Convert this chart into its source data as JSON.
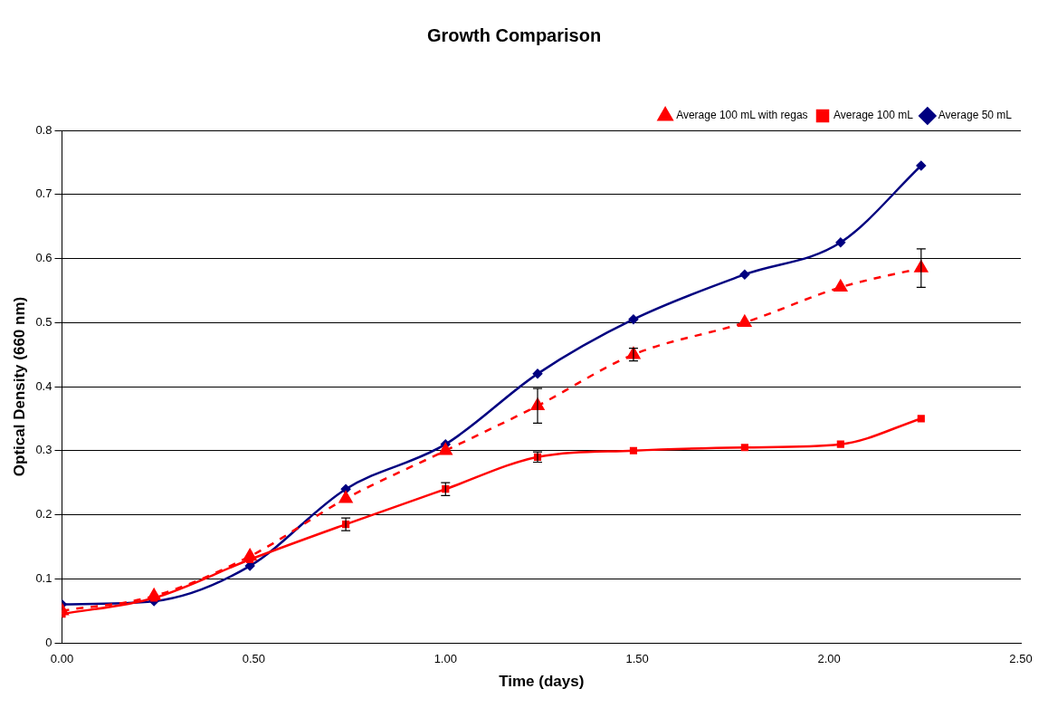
{
  "chart_data": {
    "type": "line",
    "title": "Growth Comparison",
    "xlabel": "Time (days)",
    "ylabel": "Optical Density (660 nm)",
    "xlim": [
      0,
      2.5
    ],
    "xticks": [
      {
        "value": 0,
        "label": "0.00"
      },
      {
        "value": 0.5,
        "label": "0.50"
      },
      {
        "value": 1,
        "label": "1.00"
      },
      {
        "value": 1.5,
        "label": "1.50"
      },
      {
        "value": 2,
        "label": "2.00"
      },
      {
        "value": 2.5,
        "label": "2.50"
      }
    ],
    "ylim": [
      0,
      0.8
    ],
    "yticks": [
      0,
      0.1,
      0.2,
      0.3,
      0.4,
      0.5,
      0.6,
      0.7,
      0.8
    ],
    "grid": "y",
    "legend": "top right",
    "x": [
      0,
      0.24,
      0.49,
      0.74,
      1.0,
      1.24,
      1.49,
      1.78,
      2.03,
      2.24
    ],
    "series": [
      {
        "name": "Average 50 mL",
        "color": "#000080",
        "marker": "diamond",
        "line_style": "solid",
        "values": [
          0.06,
          0.065,
          0.12,
          0.24,
          0.31,
          0.42,
          0.505,
          0.575,
          0.625,
          0.745
        ]
      },
      {
        "name": "Average 100 mL",
        "color": "#ff0000",
        "marker": "square",
        "line_style": "solid",
        "values": [
          0.045,
          0.07,
          0.13,
          0.185,
          0.24,
          0.29,
          0.3,
          0.305,
          0.31,
          0.35
        ],
        "errors": [
          null,
          null,
          null,
          0.01,
          0.01,
          0.008,
          null,
          null,
          null,
          null
        ]
      },
      {
        "name": "Average 100 mL with regas",
        "color": "#ff0000",
        "marker": "triangle",
        "line_style": "dashed",
        "values": [
          0.05,
          0.073,
          0.135,
          0.225,
          0.3,
          0.37,
          0.45,
          0.5,
          0.555,
          0.585
        ],
        "errors": [
          null,
          null,
          null,
          null,
          null,
          0.027,
          0.01,
          null,
          null,
          0.03
        ]
      }
    ]
  }
}
